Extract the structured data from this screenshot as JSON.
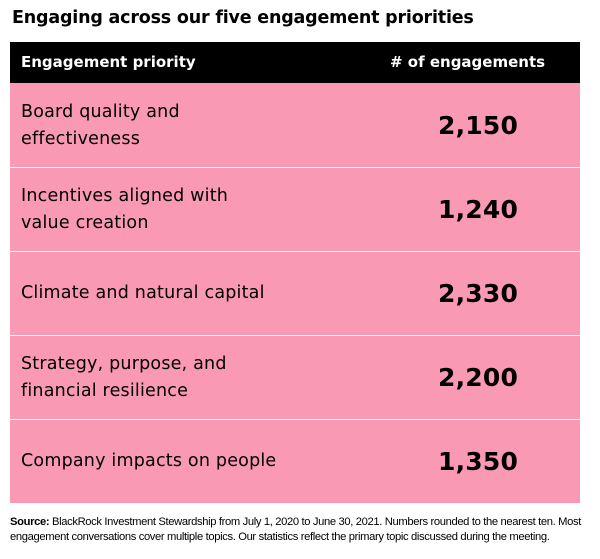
{
  "title": "Engaging across our five engagement priorities",
  "table": {
    "headers": {
      "priority": "Engagement priority",
      "count": "# of engagements"
    },
    "rows": [
      {
        "priority": "Board quality and effectiveness",
        "count": "2,150"
      },
      {
        "priority": "Incentives aligned with\nvalue creation",
        "count": "1,240"
      },
      {
        "priority": "Climate and natural capital",
        "count": "2,330"
      },
      {
        "priority": "Strategy, purpose, and\nfinancial resilience",
        "count": "2,200"
      },
      {
        "priority": "Company impacts on people",
        "count": "1,350"
      }
    ]
  },
  "footnote": {
    "source_label": "Source:",
    "text": " BlackRock Investment Stewardship from July 1, 2020 to June 30, 2021. Numbers rounded to the nearest ten. Most engagement conversations cover multiple topics. Our statistics reflect the primary topic discussed during the meeting."
  },
  "colors": {
    "row_background": "#f999b4",
    "header_background": "#000000",
    "header_text": "#ffffff"
  }
}
